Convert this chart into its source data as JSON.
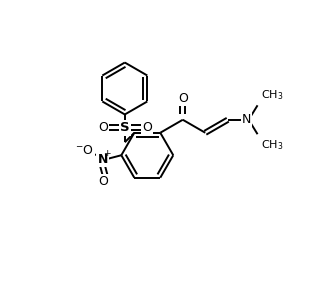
{
  "bg_color": "#ffffff",
  "line_color": "#000000",
  "lw": 1.4,
  "figsize": [
    3.3,
    2.92
  ],
  "dpi": 100,
  "atoms": {
    "S_label": "S",
    "N_label": "N",
    "O_label": "O",
    "N2_label": "N",
    "NO2_label": "N",
    "minus_label": "-",
    "plus_label": "+"
  }
}
